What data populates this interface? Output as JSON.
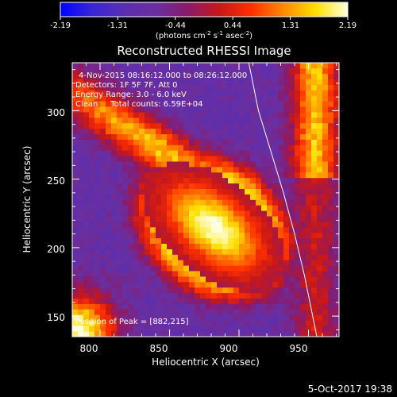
{
  "colorbar": {
    "tick_labels": [
      "-2.19",
      "-1.31",
      "-0.44",
      "0.44",
      "1.31",
      "2.19"
    ],
    "label_parts": {
      "pre1": "(photons cm",
      "sup1": "-2",
      "mid1": " s",
      "sup2": "-1",
      "mid2": " asec",
      "sup3": "-2",
      "post": ")"
    },
    "range": [
      -2.19,
      2.19
    ],
    "colors": [
      "#0000ff",
      "#3b25d8",
      "#5a2eb0",
      "#6a2fa0",
      "#8a1a6a",
      "#c81818",
      "#ff3000",
      "#ff8a00",
      "#ffe000",
      "#ffffe0"
    ]
  },
  "chart_data": {
    "type": "heatmap",
    "title": "Reconstructed RHESSI Image",
    "xlabel": "Heliocentric X (arcsec)",
    "ylabel": "Heliocentric Y (arcsec)",
    "xlim": [
      780,
      972
    ],
    "ylim": [
      135,
      335
    ],
    "x_ticks": [
      800,
      850,
      900,
      950
    ],
    "y_ticks": [
      150,
      200,
      250,
      300
    ],
    "annotations": [
      "4-Nov-2015 08:16:12.000 to 08:26:12.000",
      "Detectors: 1F 5F 7F, Att 0",
      "Energy Range: 3.0 - 6.0 keV",
      "Clean     Total counts: 6.59E+04"
    ],
    "peak_label": "Position of Peak = [882,215]",
    "peak": [
      882,
      215
    ],
    "limb_curve": [
      [
        907,
        335
      ],
      [
        914,
        300
      ],
      [
        923,
        270
      ],
      [
        932,
        240
      ],
      [
        940,
        210
      ],
      [
        947,
        180
      ],
      [
        953,
        150
      ],
      [
        956,
        135
      ]
    ]
  },
  "timestamp": "5-Oct-2017 19:38"
}
